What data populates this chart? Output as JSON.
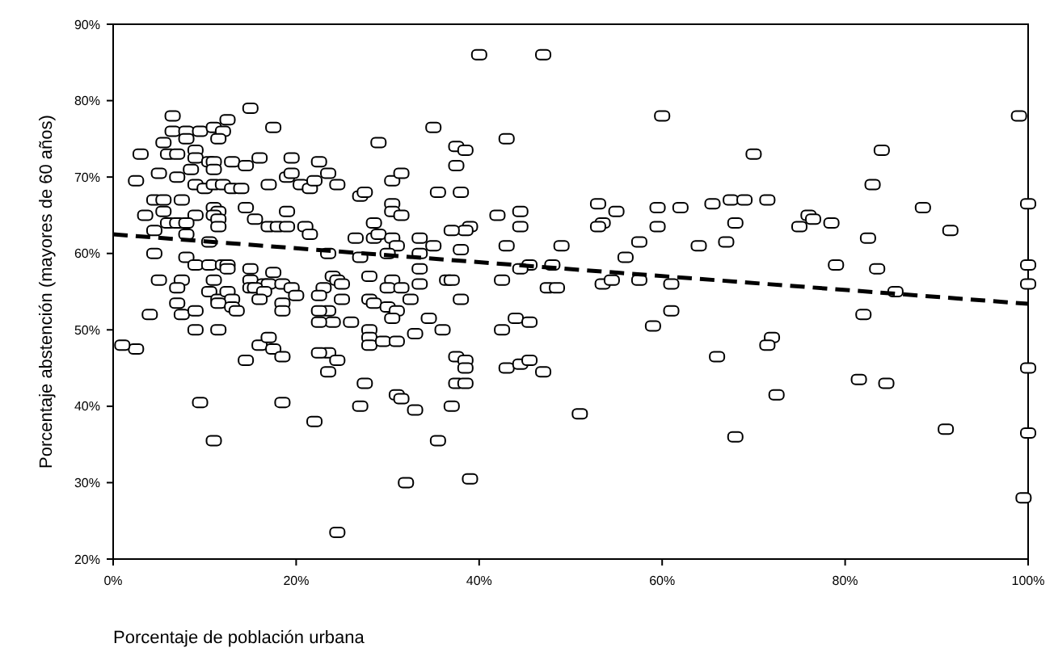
{
  "chart_data": {
    "type": "scatter",
    "xlabel": "Porcentaje de población urbana",
    "ylabel": "Porcentaje abstención (mayores de 60 años)",
    "xlim": [
      0,
      100
    ],
    "ylim": [
      20,
      90
    ],
    "xticks": [
      {
        "value": 0,
        "label": "0%"
      },
      {
        "value": 20,
        "label": "20%"
      },
      {
        "value": 40,
        "label": "40%"
      },
      {
        "value": 60,
        "label": "60%"
      },
      {
        "value": 80,
        "label": "80%"
      },
      {
        "value": 100,
        "label": "100%"
      }
    ],
    "yticks": [
      {
        "value": 20,
        "label": "20%"
      },
      {
        "value": 30,
        "label": "30%"
      },
      {
        "value": 40,
        "label": "40%"
      },
      {
        "value": 50,
        "label": "50%"
      },
      {
        "value": 60,
        "label": "60%"
      },
      {
        "value": 70,
        "label": "70%"
      },
      {
        "value": 80,
        "label": "80%"
      },
      {
        "value": 90,
        "label": "90%"
      }
    ],
    "grid": false,
    "series": [
      {
        "color": "#000000",
        "marker": "square",
        "x": [
          99,
          84,
          83,
          88.5,
          91.5,
          76,
          75,
          76.5,
          78.5,
          82.5,
          79,
          83.5,
          85.5,
          82,
          81.5,
          84.5,
          91,
          72,
          72.5,
          100,
          100,
          100,
          100,
          100,
          99.5,
          60,
          70,
          53,
          53.5,
          53,
          55,
          59.5,
          62,
          65.5,
          67.5,
          69,
          71.5,
          68,
          59.5,
          57.5,
          67,
          64,
          49,
          56,
          48,
          47.5,
          48.5,
          53.5,
          54.5,
          57.5,
          61,
          61,
          59,
          66,
          71.5,
          51,
          68,
          47,
          40,
          35,
          29,
          43,
          37.5,
          38.5,
          24.5,
          30.5,
          31.5,
          37.5,
          27,
          27.5,
          35.5,
          38,
          30.5,
          30.5,
          31.5,
          44.5,
          42,
          44.5,
          39,
          38.5,
          37,
          28.5,
          26.5,
          28.5,
          29,
          30.5,
          33.5,
          35,
          31,
          30,
          33.5,
          38,
          43,
          23.5,
          27,
          45.5,
          44.5,
          33.5,
          28,
          42.5,
          36.5,
          37,
          24,
          24.5,
          25,
          30.5,
          33.5,
          30,
          31.5,
          32.5,
          38,
          25,
          28,
          28.5,
          30,
          31,
          30.5,
          26,
          34.5,
          33,
          36,
          28,
          28,
          28,
          29.5,
          31,
          42.5,
          44,
          45.5,
          37.5,
          38.5,
          38.5,
          37.5,
          38.5,
          43,
          44.5,
          45.5,
          47,
          27.5,
          27,
          31,
          31.5,
          33,
          37,
          35.5,
          32,
          39,
          24.5,
          23.5,
          23,
          23.5,
          23.5,
          24.5,
          15,
          6.5,
          12.5,
          17.5,
          6.5,
          8,
          8,
          9.5,
          11,
          12,
          11.5,
          5.5,
          6,
          7,
          3,
          9,
          9,
          10.5,
          11,
          11,
          13,
          14.5,
          16,
          19.5,
          22.5,
          23.5,
          5,
          7,
          8.5,
          9,
          10,
          11,
          12,
          13,
          14,
          17,
          19,
          19.5,
          20.5,
          21.5,
          22,
          2.5,
          4.5,
          5.5,
          7.5,
          3.5,
          5.5,
          11,
          11.5,
          11,
          11.5,
          9,
          14.5,
          15.5,
          17,
          18,
          19,
          19,
          21,
          6,
          7,
          4.5,
          8,
          8,
          11.5,
          10.5,
          21.5,
          4.5,
          8,
          9,
          10.5,
          12,
          12.5,
          15,
          12.5,
          17.5,
          5,
          7.5,
          11,
          15,
          16.5,
          17,
          18.5,
          19.5,
          20,
          7,
          7,
          10.5,
          11.5,
          12.5,
          13,
          11.5,
          15,
          15.5,
          16.5,
          16,
          18.5,
          18.5,
          22.5,
          22.5,
          7.5,
          9,
          13,
          13.5,
          4,
          24,
          22.5,
          9,
          11.5,
          2.5,
          16,
          17,
          17.5,
          18.5,
          14.5,
          22.5,
          9.5,
          18.5,
          22,
          11,
          1
        ],
        "values": [
          78,
          73.5,
          69,
          66,
          63,
          65,
          63.5,
          64.5,
          64,
          62,
          58.5,
          58,
          55,
          52,
          43.5,
          43,
          37,
          49,
          41.5,
          66.5,
          58.5,
          56,
          45,
          36.5,
          28,
          78,
          73,
          66.5,
          64,
          63.5,
          65.5,
          66,
          66,
          66.5,
          67,
          67,
          67,
          64,
          63.5,
          61.5,
          61.5,
          61,
          61,
          59.5,
          58.5,
          55.5,
          55.5,
          56,
          56.5,
          56.5,
          56,
          52.5,
          50.5,
          46.5,
          48,
          39,
          36,
          86,
          86,
          76.5,
          74.5,
          75,
          74,
          73.5,
          69,
          69.5,
          70.5,
          71.5,
          67.5,
          68,
          68,
          68,
          66.5,
          65.5,
          65,
          65.5,
          65,
          63.5,
          63.5,
          63,
          63,
          64,
          62,
          62,
          62.5,
          62,
          62,
          61,
          61,
          60,
          60,
          60.5,
          61,
          60,
          59.5,
          58.5,
          58,
          58,
          57,
          56.5,
          56.5,
          56.5,
          57,
          56.5,
          56,
          56.5,
          56,
          55.5,
          55.5,
          54,
          54,
          54,
          54,
          53.5,
          53,
          52.5,
          51.5,
          51,
          51.5,
          49.5,
          50,
          50,
          49,
          48,
          48.5,
          48.5,
          50,
          51.5,
          51,
          46.5,
          46,
          45,
          43,
          43,
          45,
          45.5,
          46,
          44.5,
          43,
          40,
          41.5,
          41,
          39.5,
          40,
          35.5,
          30,
          30.5,
          23.5,
          52.5,
          55.5,
          47,
          44.5,
          46,
          79,
          78,
          77.5,
          76.5,
          76,
          76,
          75,
          76,
          76.5,
          76,
          75,
          74.5,
          73,
          73,
          73,
          73.5,
          72.5,
          72,
          72,
          71,
          72,
          71.5,
          72.5,
          72.5,
          72,
          70.5,
          70.5,
          70,
          71,
          69,
          68.5,
          69,
          69,
          68.5,
          68.5,
          69,
          70,
          70.5,
          69,
          68.5,
          69.5,
          69.5,
          67,
          67,
          67,
          65,
          65.5,
          66,
          65.5,
          65,
          64.5,
          65,
          66,
          64.5,
          63.5,
          63.5,
          63.5,
          65.5,
          63.5,
          64,
          64,
          63,
          64,
          62.5,
          63.5,
          61.5,
          62.5,
          60,
          59.5,
          58.5,
          58.5,
          58.5,
          58.5,
          58,
          58,
          57.5,
          56.5,
          56.5,
          56.5,
          56.5,
          56,
          56,
          56,
          55.5,
          54.5,
          55.5,
          53.5,
          55,
          54,
          55,
          54,
          53.5,
          55.5,
          55.5,
          55,
          54,
          53.5,
          52.5,
          54.5,
          52.5,
          52,
          52.5,
          53,
          52.5,
          52,
          51,
          51,
          50,
          50,
          47.5,
          48,
          49,
          47.5,
          46.5,
          46,
          47,
          40.5,
          40.5,
          38,
          35.5,
          48
        ]
      },
      {
        "type": "line",
        "color": "#000000",
        "line_style": "dashed",
        "x": [
          0,
          100
        ],
        "values": [
          62.5,
          53.4
        ]
      }
    ]
  }
}
